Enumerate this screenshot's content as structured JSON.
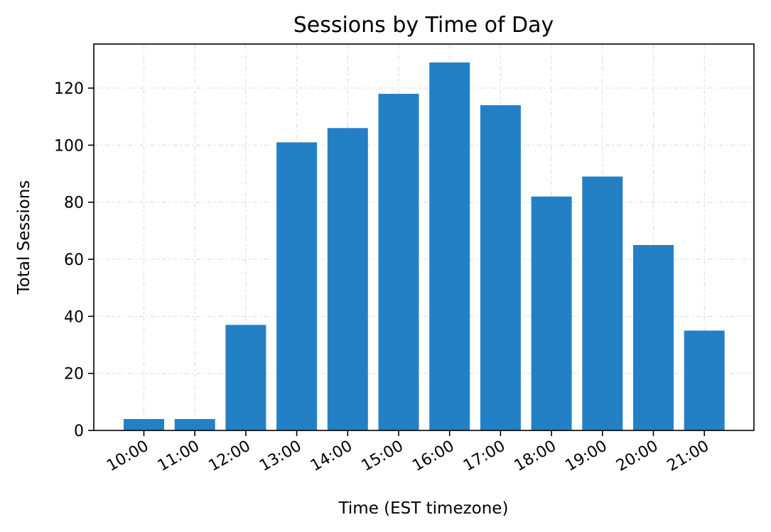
{
  "chart_data": {
    "type": "bar",
    "title": "Sessions by Time of Day",
    "xlabel": "Time (EST timezone)",
    "ylabel": "Total Sessions",
    "categories": [
      "10:00",
      "11:00",
      "12:00",
      "13:00",
      "14:00",
      "15:00",
      "16:00",
      "17:00",
      "18:00",
      "19:00",
      "20:00",
      "21:00"
    ],
    "values": [
      4,
      4,
      37,
      101,
      106,
      118,
      129,
      114,
      82,
      89,
      65,
      35
    ],
    "ylim": [
      0,
      135.45
    ],
    "yticks": [
      0,
      20,
      40,
      60,
      80,
      100,
      120
    ],
    "grid": true,
    "bar_color": "#2480c5",
    "legend": "none"
  }
}
